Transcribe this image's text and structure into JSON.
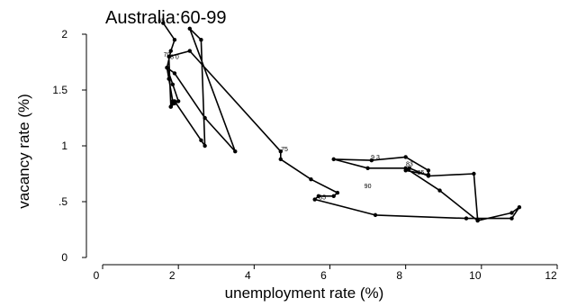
{
  "chart_data": {
    "type": "line",
    "title": "Australia:60-99",
    "xlabel": "unemployment rate (%)",
    "ylabel": "vacancy rate (%)",
    "xlim": [
      0,
      12
    ],
    "ylim": [
      0,
      2
    ],
    "x_ticks": [
      {
        "value": 0,
        "label": "0"
      },
      {
        "value": 2,
        "label": "2"
      },
      {
        "value": 4,
        "label": "4"
      },
      {
        "value": 6,
        "label": "6"
      },
      {
        "value": 8,
        "label": "8"
      },
      {
        "value": 10,
        "label": "10"
      },
      {
        "value": 12,
        "label": "12"
      }
    ],
    "y_ticks": [
      {
        "value": 0,
        "label": "0"
      },
      {
        "value": 0.5,
        "label": ".5"
      },
      {
        "value": 1,
        "label": "1"
      },
      {
        "value": 1.5,
        "label": "1.5"
      },
      {
        "value": 2,
        "label": "2"
      }
    ],
    "line_color": "#000000",
    "series": [
      {
        "x": [
          1.6,
          1.9,
          1.8,
          1.7,
          1.85,
          2.0,
          1.9,
          1.8,
          1.85,
          1.75,
          1.7,
          1.9,
          2.7,
          3.5,
          2.3,
          2.6,
          2.7,
          2.6,
          1.9,
          1.8,
          1.75,
          2.3,
          4.7,
          4.7,
          5.5,
          6.2,
          6.1,
          5.7,
          5.6,
          7.2,
          9.6,
          10.8,
          11.0,
          10.8,
          9.9,
          8.9,
          8.0,
          7.0,
          6.1,
          7.1,
          8.0,
          8.6,
          8.6,
          8.0,
          8.1,
          8.6,
          9.8,
          9.9
        ],
        "y": [
          2.1,
          1.95,
          1.85,
          1.7,
          1.55,
          1.4,
          1.38,
          1.35,
          1.4,
          1.6,
          1.7,
          1.65,
          1.25,
          0.95,
          2.05,
          1.95,
          1.0,
          1.05,
          1.4,
          1.35,
          1.8,
          1.85,
          0.95,
          0.88,
          0.7,
          0.58,
          0.55,
          0.55,
          0.52,
          0.38,
          0.35,
          0.35,
          0.45,
          0.4,
          0.33,
          0.6,
          0.8,
          0.8,
          0.88,
          0.87,
          0.9,
          0.78,
          0.74,
          0.78,
          0.8,
          0.73,
          0.75,
          0.34
        ]
      }
    ],
    "annotations": [
      {
        "text": "65",
        "x": 1.55,
        "y": 2.1
      },
      {
        "text": "70",
        "x": 1.7,
        "y": 1.8
      },
      {
        "text": "8 0",
        "x": 1.9,
        "y": 1.78
      },
      {
        "text": "75",
        "x": 4.8,
        "y": 0.95
      },
      {
        "text": "85",
        "x": 5.8,
        "y": 0.52
      },
      {
        "text": "90",
        "x": 7.0,
        "y": 0.62
      },
      {
        "text": "9 3",
        "x": 7.2,
        "y": 0.88
      },
      {
        "text": "83",
        "x": 8.1,
        "y": 0.82
      },
      {
        "text": "95",
        "x": 8.4,
        "y": 0.74
      }
    ]
  }
}
